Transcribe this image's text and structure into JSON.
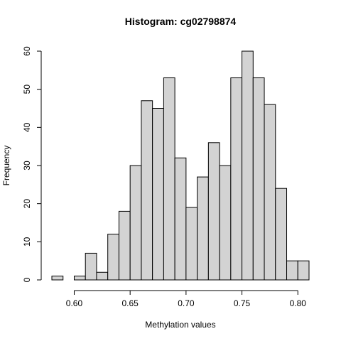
{
  "chart_data": {
    "type": "bar",
    "title": "Histogram: cg02798874",
    "xlabel": "Methylation values",
    "ylabel": "Frequency",
    "bin_width": 0.01,
    "bins": [
      {
        "start": 0.58,
        "end": 0.59,
        "count": 1
      },
      {
        "start": 0.59,
        "end": 0.6,
        "count": 0
      },
      {
        "start": 0.6,
        "end": 0.61,
        "count": 1
      },
      {
        "start": 0.61,
        "end": 0.62,
        "count": 7
      },
      {
        "start": 0.62,
        "end": 0.63,
        "count": 2
      },
      {
        "start": 0.63,
        "end": 0.64,
        "count": 12
      },
      {
        "start": 0.64,
        "end": 0.65,
        "count": 18
      },
      {
        "start": 0.65,
        "end": 0.66,
        "count": 30
      },
      {
        "start": 0.66,
        "end": 0.67,
        "count": 47
      },
      {
        "start": 0.67,
        "end": 0.68,
        "count": 45
      },
      {
        "start": 0.68,
        "end": 0.69,
        "count": 53
      },
      {
        "start": 0.69,
        "end": 0.7,
        "count": 32
      },
      {
        "start": 0.7,
        "end": 0.71,
        "count": 19
      },
      {
        "start": 0.71,
        "end": 0.72,
        "count": 27
      },
      {
        "start": 0.72,
        "end": 0.73,
        "count": 36
      },
      {
        "start": 0.73,
        "end": 0.74,
        "count": 30
      },
      {
        "start": 0.74,
        "end": 0.75,
        "count": 53
      },
      {
        "start": 0.75,
        "end": 0.76,
        "count": 60
      },
      {
        "start": 0.76,
        "end": 0.77,
        "count": 53
      },
      {
        "start": 0.77,
        "end": 0.78,
        "count": 46
      },
      {
        "start": 0.78,
        "end": 0.79,
        "count": 24
      },
      {
        "start": 0.79,
        "end": 0.8,
        "count": 5
      },
      {
        "start": 0.8,
        "end": 0.81,
        "count": 5
      }
    ],
    "xlim": [
      0.58,
      0.81
    ],
    "ylim": [
      0,
      60
    ],
    "xticks": [
      0.6,
      0.65,
      0.7,
      0.75,
      0.8
    ],
    "xtick_labels": [
      "0.60",
      "0.65",
      "0.70",
      "0.75",
      "0.80"
    ],
    "yticks": [
      0,
      10,
      20,
      30,
      40,
      50,
      60
    ],
    "ytick_labels": [
      "0",
      "10",
      "20",
      "30",
      "40",
      "50",
      "60"
    ],
    "grid": false,
    "colors": {
      "bar_fill": "#d3d3d3",
      "bar_stroke": "#000000"
    }
  }
}
